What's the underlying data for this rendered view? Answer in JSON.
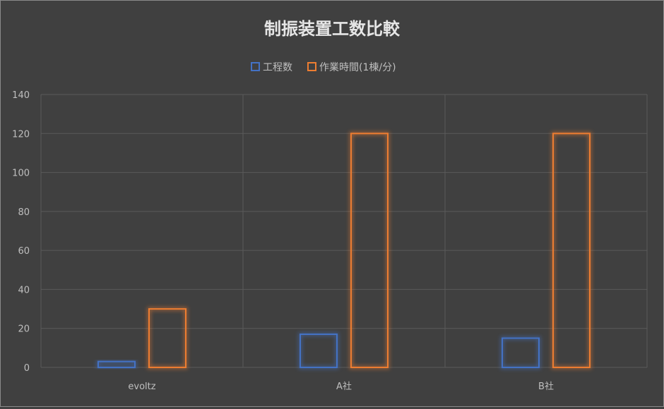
{
  "chart_data": {
    "type": "bar",
    "title": "制振装置工数比較",
    "categories": [
      "evoltz",
      "A社",
      "B社"
    ],
    "series": [
      {
        "name": "工程数",
        "values": [
          3,
          17,
          15
        ],
        "color": "#4472C4"
      },
      {
        "name": "作業時間(1棟/分)",
        "values": [
          30,
          120,
          120
        ],
        "color": "#ED7D31"
      }
    ],
    "ylim": [
      0,
      140
    ],
    "yticks": [
      0,
      20,
      40,
      60,
      80,
      100,
      120,
      140
    ],
    "xlabel": "",
    "ylabel": "",
    "grid": true,
    "legend": "top",
    "background": "#404040"
  }
}
